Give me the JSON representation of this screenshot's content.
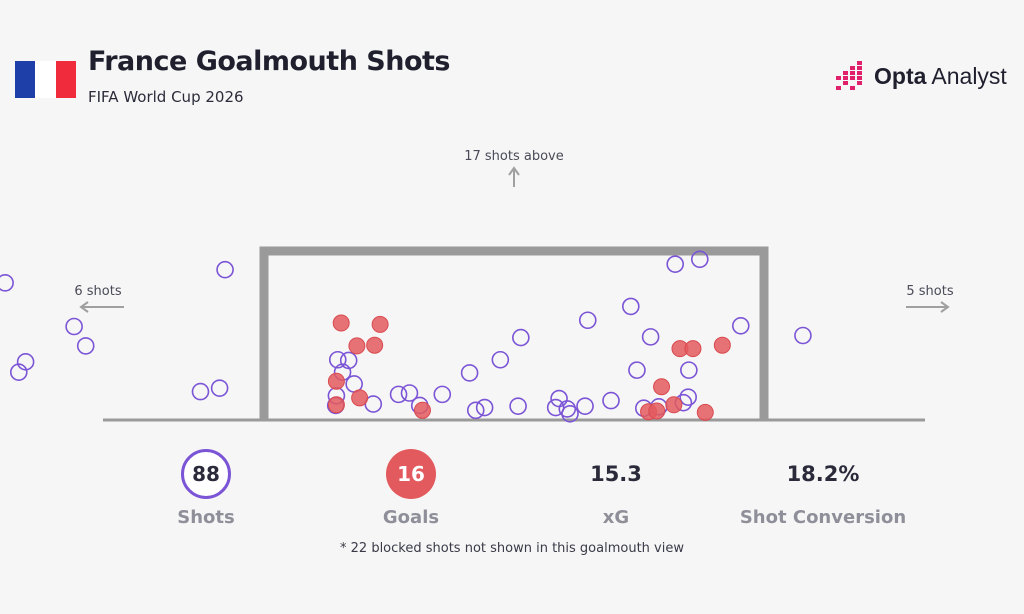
{
  "header": {
    "title": "France Goalmouth Shots",
    "subtitle": "FIFA World Cup 2026",
    "flag_colors": [
      "#1f3fa8",
      "#ffffff",
      "#ef2b3c"
    ]
  },
  "brand": {
    "name_bold": "Opta",
    "name_regular": "Analyst",
    "logo_color": "#e0206a"
  },
  "colors": {
    "shot_stroke": "#7b55d6",
    "goal_fill": "#e35a5e",
    "goal_stroke": "#d94a50",
    "frame": "#9a9a9a",
    "arrow": "#a0a0a0"
  },
  "chart_data": {
    "type": "scatter",
    "annotations": {
      "above": "17 shots above",
      "left": "6 shots",
      "right": "5 shots"
    },
    "series": [
      {
        "name": "Shots",
        "points": [
          [
            -3.79,
            1.98
          ],
          [
            -0.57,
            2.17
          ],
          [
            6.38,
            2.32
          ],
          [
            6.02,
            2.25
          ],
          [
            -2.78,
            1.35
          ],
          [
            -2.61,
            1.07
          ],
          [
            -3.49,
            0.84
          ],
          [
            -3.59,
            0.69
          ],
          [
            -0.65,
            0.46
          ],
          [
            -0.93,
            0.41
          ],
          [
            1.08,
            0.87
          ],
          [
            1.24,
            0.86
          ],
          [
            1.15,
            0.69
          ],
          [
            1.32,
            0.52
          ],
          [
            1.05,
            0.21
          ],
          [
            1.97,
            0.37
          ],
          [
            2.13,
            0.39
          ],
          [
            2.28,
            0.21
          ],
          [
            2.61,
            0.37
          ],
          [
            3.1,
            0.14
          ],
          [
            3.23,
            0.18
          ],
          [
            3.76,
            1.19
          ],
          [
            3.01,
            0.68
          ],
          [
            3.46,
            0.87
          ],
          [
            3.72,
            0.2
          ],
          [
            4.27,
            0.18
          ],
          [
            4.32,
            0.31
          ],
          [
            4.44,
            0.16
          ],
          [
            4.48,
            0.09
          ],
          [
            4.7,
            0.2
          ],
          [
            5.08,
            0.28
          ],
          [
            5.46,
            0.72
          ],
          [
            5.37,
            1.64
          ],
          [
            5.66,
            1.2
          ],
          [
            5.56,
            0.17
          ],
          [
            5.78,
            0.19
          ],
          [
            6.14,
            0.25
          ],
          [
            6.21,
            0.33
          ],
          [
            6.22,
            0.72
          ],
          [
            6.98,
            1.36
          ],
          [
            7.89,
            1.22
          ],
          [
            4.74,
            1.44
          ],
          [
            1.6,
            0.23
          ],
          [
            1.06,
            0.35
          ]
        ]
      },
      {
        "name": "Goals",
        "points": [
          [
            1.13,
            1.4
          ],
          [
            1.36,
            1.07
          ],
          [
            1.7,
            1.38
          ],
          [
            1.62,
            1.08
          ],
          [
            1.06,
            0.56
          ],
          [
            1.06,
            0.22
          ],
          [
            1.4,
            0.32
          ],
          [
            2.32,
            0.14
          ],
          [
            5.63,
            0.12
          ],
          [
            5.82,
            0.48
          ],
          [
            6.0,
            0.22
          ],
          [
            6.09,
            1.03
          ],
          [
            6.28,
            1.03
          ],
          [
            6.71,
            1.08
          ],
          [
            6.46,
            0.11
          ],
          [
            5.75,
            0.13
          ]
        ]
      }
    ]
  },
  "stats": [
    {
      "value": "88",
      "label": "Shots"
    },
    {
      "value": "16",
      "label": "Goals"
    },
    {
      "value": "15.3",
      "label": "xG"
    },
    {
      "value": "18.2%",
      "label": "Shot Conversion"
    }
  ],
  "footnote": "* 22 blocked shots not shown in this goalmouth view"
}
